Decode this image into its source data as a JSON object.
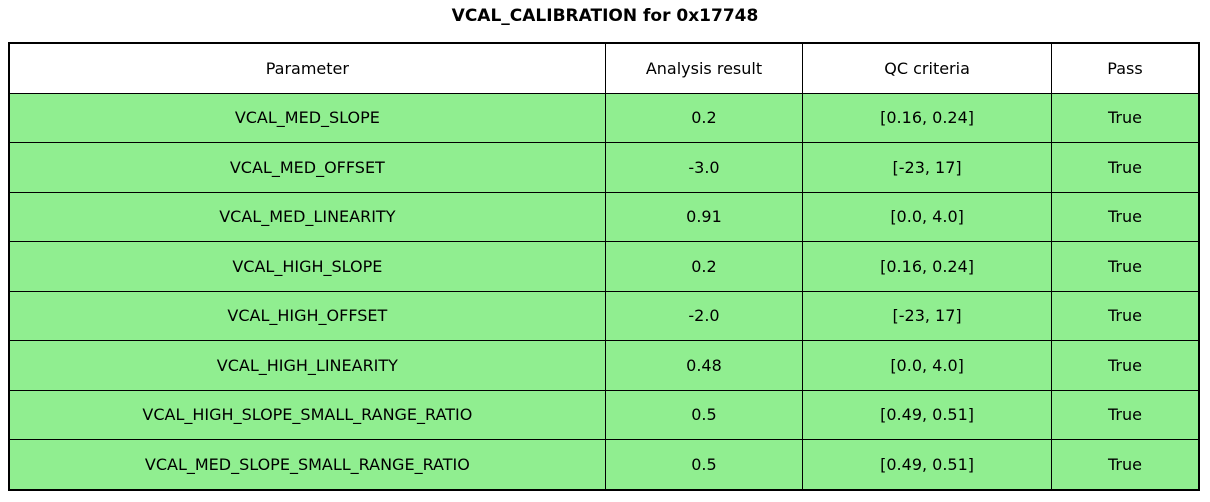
{
  "title": "VCAL_CALIBRATION for 0x17748",
  "colors": {
    "pass_row_bg": "#90EE90",
    "header_bg": "#FFFFFF",
    "border": "#000000",
    "text": "#000000"
  },
  "chart_data": {
    "type": "table",
    "title": "VCAL_CALIBRATION for 0x17748",
    "columns": [
      "Parameter",
      "Analysis result",
      "QC criteria",
      "Pass"
    ],
    "rows": [
      [
        "VCAL_MED_SLOPE",
        "0.2",
        "[0.16, 0.24]",
        "True"
      ],
      [
        "VCAL_MED_OFFSET",
        "-3.0",
        "[-23, 17]",
        "True"
      ],
      [
        "VCAL_MED_LINEARITY",
        "0.91",
        "[0.0, 4.0]",
        "True"
      ],
      [
        "VCAL_HIGH_SLOPE",
        "0.2",
        "[0.16, 0.24]",
        "True"
      ],
      [
        "VCAL_HIGH_OFFSET",
        "-2.0",
        "[-23, 17]",
        "True"
      ],
      [
        "VCAL_HIGH_LINEARITY",
        "0.48",
        "[0.0, 4.0]",
        "True"
      ],
      [
        "VCAL_HIGH_SLOPE_SMALL_RANGE_RATIO",
        "0.5",
        "[0.49, 0.51]",
        "True"
      ],
      [
        "VCAL_MED_SLOPE_SMALL_RANGE_RATIO",
        "0.5",
        "[0.49, 0.51]",
        "True"
      ]
    ],
    "row_pass_status": [
      true,
      true,
      true,
      true,
      true,
      true,
      true,
      true
    ],
    "layout": {
      "header_background": "#FFFFFF",
      "pass_row_background": "#90EE90",
      "grid": true
    }
  }
}
